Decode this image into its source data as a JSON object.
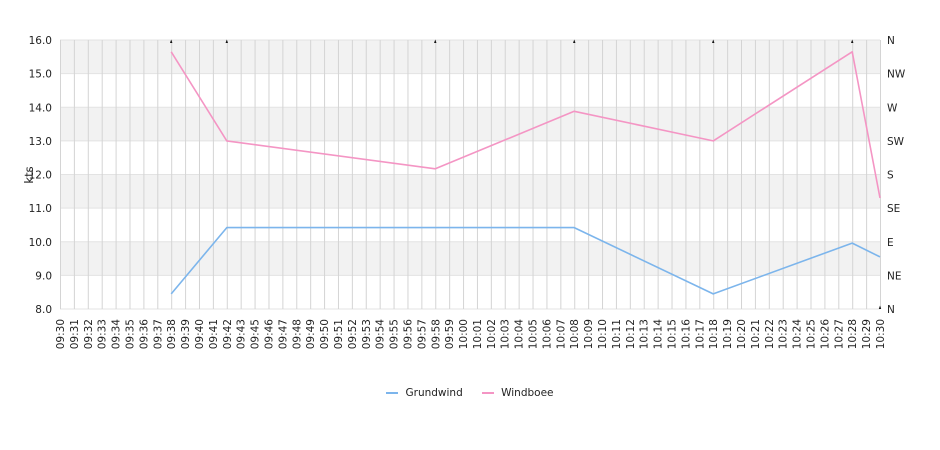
{
  "chart_data": {
    "type": "line",
    "categories": [
      "09:30",
      "09:31",
      "09:32",
      "09:33",
      "09:34",
      "09:35",
      "09:36",
      "09:37",
      "09:38",
      "09:39",
      "09:40",
      "09:41",
      "09:42",
      "09:43",
      "09:45",
      "09:46",
      "09:47",
      "09:48",
      "09:49",
      "09:50",
      "09:51",
      "09:52",
      "09:53",
      "09:54",
      "09:55",
      "09:56",
      "09:57",
      "09:58",
      "09:59",
      "10:00",
      "10:01",
      "10:02",
      "10:03",
      "10:04",
      "10:05",
      "10:06",
      "10:07",
      "10:08",
      "10:09",
      "10:10",
      "10:11",
      "10:12",
      "10:13",
      "10:14",
      "10:15",
      "10:16",
      "10:17",
      "10:18",
      "10:19",
      "10:20",
      "10:21",
      "10:22",
      "10:23",
      "10:24",
      "10:25",
      "10:26",
      "10:27",
      "10:28",
      "10:29",
      "10:30"
    ],
    "ylabel": "kts",
    "ylim": [
      8,
      16
    ],
    "yticks": [
      "8.0",
      "9.0",
      "10.0",
      "11.0",
      "12.0",
      "13.0",
      "14.0",
      "15.0",
      "16.0"
    ],
    "y2ticks": [
      "N",
      "NE",
      "E",
      "SE",
      "S",
      "SW",
      "W",
      "NW",
      "N"
    ],
    "grid": true,
    "legend_position": "bottom-center",
    "series": [
      {
        "name": "Grundwind",
        "color": "#7cb5ec",
        "points": [
          [
            "09:38",
            8.45
          ],
          [
            "09:42",
            10.42
          ],
          [
            "10:08",
            10.42
          ],
          [
            "10:18",
            8.45
          ],
          [
            "10:28",
            9.96
          ],
          [
            "10:30",
            9.55
          ]
        ]
      },
      {
        "name": "Windboee",
        "color": "#f495c4",
        "points": [
          [
            "09:38",
            15.65
          ],
          [
            "09:42",
            13.0
          ],
          [
            "09:58",
            12.17
          ],
          [
            "10:08",
            13.88
          ],
          [
            "10:18",
            13.0
          ],
          [
            "10:28",
            15.65
          ],
          [
            "10:30",
            11.3
          ]
        ]
      }
    ],
    "direction_markers": [
      {
        "x": "09:38",
        "direction": "N"
      },
      {
        "x": "09:42",
        "direction": "N"
      },
      {
        "x": "09:58",
        "direction": "N"
      },
      {
        "x": "10:08",
        "direction": "N"
      },
      {
        "x": "10:18",
        "direction": "N"
      },
      {
        "x": "10:28",
        "direction": "N"
      },
      {
        "x": "10:30",
        "direction": "N"
      }
    ]
  }
}
